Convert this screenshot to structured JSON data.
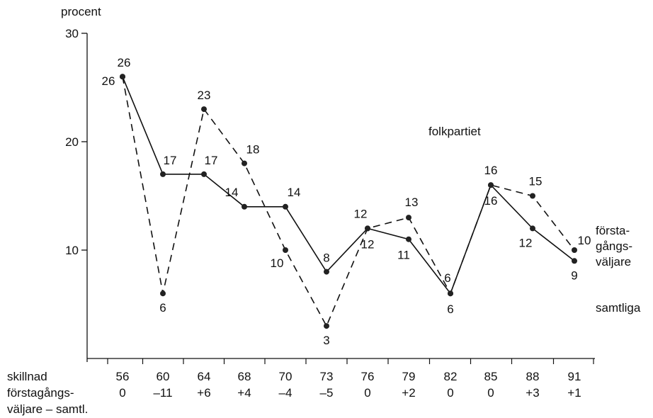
{
  "chart_data": {
    "type": "line",
    "title": "folkpartiet",
    "ylabel": "procent",
    "ylim": [
      0,
      30
    ],
    "yticks": [
      "10",
      "20",
      "30"
    ],
    "x": [
      "56",
      "60",
      "64",
      "68",
      "70",
      "73",
      "76",
      "79",
      "82",
      "85",
      "88",
      "91"
    ],
    "diff_label": [
      "skillnad",
      "förstagångs-",
      "väljare – samtl."
    ],
    "diff": [
      "0",
      "–11",
      "+6",
      "+4",
      "–4",
      "–5",
      "0",
      "+2",
      "0",
      "0",
      "+3",
      "+1"
    ],
    "grid": false,
    "series": [
      {
        "name": "förstagångsväljare",
        "label_lines": [
          "första-",
          "gångs-",
          "väljare"
        ],
        "style": "dashed",
        "values": [
          26,
          6,
          23,
          18,
          10,
          3,
          12,
          13,
          6,
          16,
          15,
          10
        ]
      },
      {
        "name": "samtliga",
        "label_lines": [
          "samtliga"
        ],
        "style": "solid",
        "values": [
          26,
          17,
          17,
          14,
          14,
          8,
          12,
          11,
          6,
          16,
          12,
          9
        ]
      }
    ]
  }
}
